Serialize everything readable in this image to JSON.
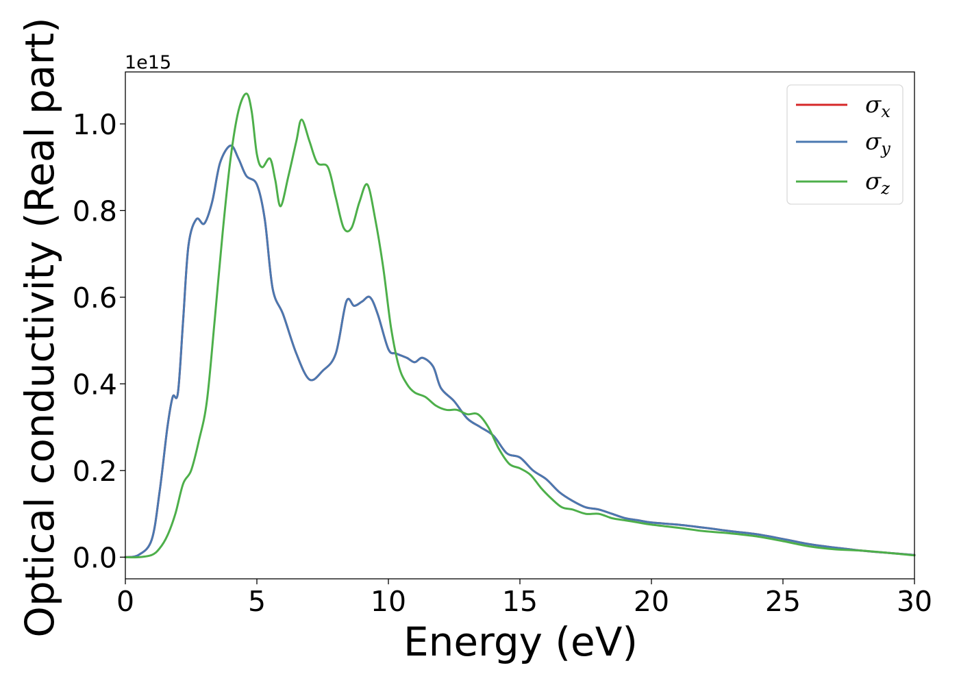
{
  "chart_data": {
    "type": "line",
    "xlabel": "Energy (eV)",
    "ylabel": "Optical conductivity (Real part)",
    "y_offset_label": "1e15",
    "xlim": [
      0,
      30
    ],
    "ylim": [
      -0.05,
      1.12
    ],
    "y_scale_factor": 1000000000000000.0,
    "x_ticks": [
      0,
      5,
      10,
      15,
      20,
      25,
      30
    ],
    "x_tick_labels": [
      "0",
      "5",
      "10",
      "15",
      "20",
      "25",
      "30"
    ],
    "y_ticks": [
      0.0,
      0.2,
      0.4,
      0.6,
      0.8,
      1.0
    ],
    "y_tick_labels": [
      "0.0",
      "0.2",
      "0.4",
      "0.6",
      "0.8",
      "1.0"
    ],
    "grid": false,
    "legend_position": "top-right",
    "series": [
      {
        "name": "σx",
        "symbol": "σ",
        "subscript": "x",
        "color": "#d62728",
        "x": [
          0,
          0.5,
          1.0,
          1.3,
          1.6,
          1.8,
          2.0,
          2.2,
          2.4,
          2.7,
          3.0,
          3.3,
          3.6,
          4.0,
          4.3,
          4.6,
          5.0,
          5.3,
          5.6,
          6.0,
          6.5,
          7.0,
          7.5,
          8.0,
          8.4,
          8.7,
          9.0,
          9.3,
          9.6,
          10.0,
          10.3,
          10.7,
          11.0,
          11.3,
          11.7,
          12.0,
          12.5,
          13.0,
          13.5,
          14.0,
          14.5,
          15.0,
          15.5,
          16.0,
          16.5,
          17.0,
          17.5,
          18.0,
          18.5,
          19.0,
          19.5,
          20.0,
          21.0,
          22.0,
          23.0,
          24.0,
          25.0,
          26.0,
          27.0,
          28.0,
          29.0,
          30.0
        ],
        "y": [
          0.0,
          0.005,
          0.04,
          0.15,
          0.3,
          0.37,
          0.38,
          0.55,
          0.72,
          0.78,
          0.77,
          0.82,
          0.91,
          0.95,
          0.92,
          0.88,
          0.86,
          0.78,
          0.62,
          0.56,
          0.47,
          0.41,
          0.43,
          0.47,
          0.59,
          0.58,
          0.59,
          0.6,
          0.56,
          0.48,
          0.47,
          0.46,
          0.45,
          0.46,
          0.44,
          0.39,
          0.36,
          0.32,
          0.3,
          0.28,
          0.24,
          0.23,
          0.2,
          0.18,
          0.15,
          0.13,
          0.115,
          0.11,
          0.1,
          0.09,
          0.085,
          0.08,
          0.075,
          0.068,
          0.06,
          0.053,
          0.042,
          0.03,
          0.022,
          0.015,
          0.01,
          0.005
        ]
      },
      {
        "name": "σy",
        "symbol": "σ",
        "subscript": "y",
        "color": "#4a78b0",
        "x": [
          0,
          0.5,
          1.0,
          1.3,
          1.6,
          1.8,
          2.0,
          2.2,
          2.4,
          2.7,
          3.0,
          3.3,
          3.6,
          4.0,
          4.3,
          4.6,
          5.0,
          5.3,
          5.6,
          6.0,
          6.5,
          7.0,
          7.5,
          8.0,
          8.4,
          8.7,
          9.0,
          9.3,
          9.6,
          10.0,
          10.3,
          10.7,
          11.0,
          11.3,
          11.7,
          12.0,
          12.5,
          13.0,
          13.5,
          14.0,
          14.5,
          15.0,
          15.5,
          16.0,
          16.5,
          17.0,
          17.5,
          18.0,
          18.5,
          19.0,
          19.5,
          20.0,
          21.0,
          22.0,
          23.0,
          24.0,
          25.0,
          26.0,
          27.0,
          28.0,
          29.0,
          30.0
        ],
        "y": [
          0.0,
          0.005,
          0.04,
          0.15,
          0.3,
          0.37,
          0.38,
          0.55,
          0.72,
          0.78,
          0.77,
          0.82,
          0.91,
          0.95,
          0.92,
          0.88,
          0.86,
          0.78,
          0.62,
          0.56,
          0.47,
          0.41,
          0.43,
          0.47,
          0.59,
          0.58,
          0.59,
          0.6,
          0.56,
          0.48,
          0.47,
          0.46,
          0.45,
          0.46,
          0.44,
          0.39,
          0.36,
          0.32,
          0.3,
          0.28,
          0.24,
          0.23,
          0.2,
          0.18,
          0.15,
          0.13,
          0.115,
          0.11,
          0.1,
          0.09,
          0.085,
          0.08,
          0.075,
          0.068,
          0.06,
          0.053,
          0.042,
          0.03,
          0.022,
          0.015,
          0.01,
          0.005
        ]
      },
      {
        "name": "σz",
        "symbol": "σ",
        "subscript": "z",
        "color": "#4daf4a",
        "x": [
          0,
          0.5,
          1.0,
          1.3,
          1.6,
          1.9,
          2.2,
          2.5,
          2.8,
          3.1,
          3.4,
          3.7,
          4.0,
          4.3,
          4.6,
          4.8,
          5.0,
          5.2,
          5.5,
          5.7,
          5.9,
          6.2,
          6.5,
          6.7,
          7.0,
          7.3,
          7.7,
          8.0,
          8.3,
          8.6,
          8.9,
          9.2,
          9.5,
          9.8,
          10.1,
          10.4,
          10.7,
          11.0,
          11.4,
          11.8,
          12.2,
          12.6,
          13.0,
          13.4,
          13.8,
          14.2,
          14.6,
          15.0,
          15.4,
          15.8,
          16.2,
          16.6,
          17.0,
          17.5,
          18.0,
          18.5,
          19.0,
          19.5,
          20.0,
          21.0,
          22.0,
          23.0,
          24.0,
          25.0,
          26.0,
          27.0,
          28.0,
          29.0,
          30.0
        ],
        "y": [
          0.0,
          0.0,
          0.005,
          0.02,
          0.05,
          0.1,
          0.17,
          0.2,
          0.27,
          0.36,
          0.55,
          0.75,
          0.92,
          1.03,
          1.07,
          1.03,
          0.93,
          0.9,
          0.92,
          0.87,
          0.81,
          0.88,
          0.96,
          1.01,
          0.96,
          0.91,
          0.9,
          0.83,
          0.76,
          0.76,
          0.82,
          0.86,
          0.78,
          0.67,
          0.53,
          0.44,
          0.4,
          0.38,
          0.37,
          0.35,
          0.34,
          0.34,
          0.33,
          0.33,
          0.3,
          0.25,
          0.215,
          0.205,
          0.19,
          0.16,
          0.135,
          0.115,
          0.11,
          0.1,
          0.1,
          0.09,
          0.085,
          0.08,
          0.075,
          0.068,
          0.06,
          0.055,
          0.048,
          0.037,
          0.025,
          0.018,
          0.015,
          0.01,
          0.004
        ]
      }
    ]
  }
}
